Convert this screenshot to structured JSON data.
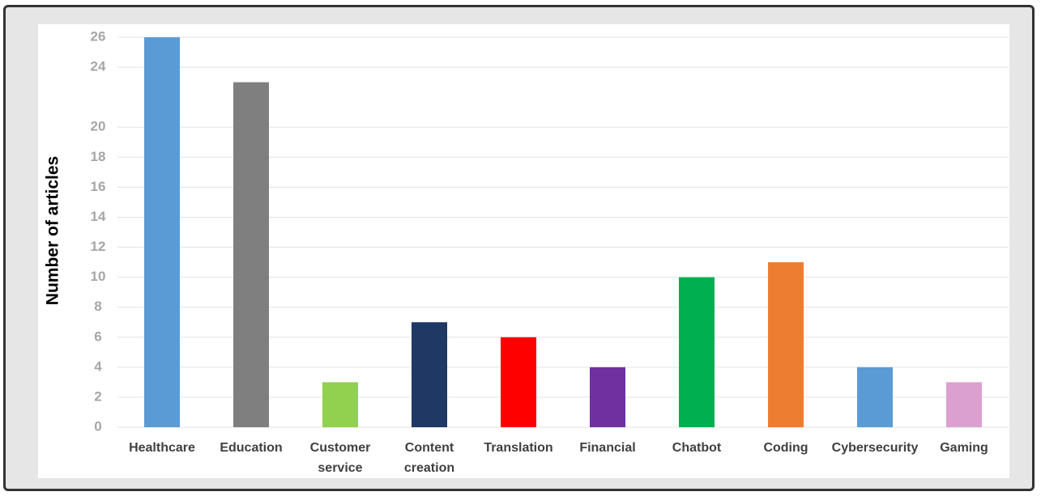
{
  "chart_data": {
    "type": "bar",
    "y_label": "Number of articles",
    "categories": [
      "Healthcare",
      "Education",
      "Customer service",
      "Content creation",
      "Translation",
      "Financial",
      "Chatbot",
      "Coding",
      "Cybersecurity",
      "Gaming"
    ],
    "values": [
      26,
      23,
      3,
      7,
      6,
      4,
      10,
      11,
      4,
      3
    ],
    "colors": [
      "#5b9bd5",
      "#7f7f7f",
      "#92d050",
      "#1f3864",
      "#ff0000",
      "#7030a0",
      "#00b050",
      "#ed7d31",
      "#5b9bd5",
      "#dba0d0"
    ],
    "ylim": [
      0,
      26
    ],
    "yticks": [
      0,
      2,
      4,
      6,
      8,
      10,
      12,
      14,
      16,
      18,
      20,
      24,
      26
    ],
    "grid": true
  }
}
